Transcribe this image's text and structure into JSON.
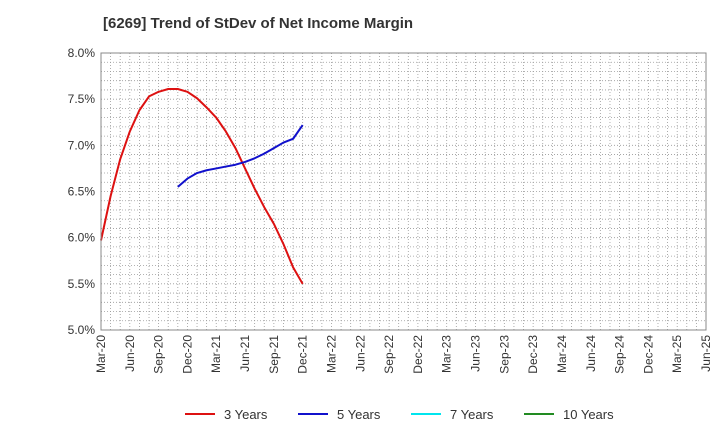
{
  "chart_data": {
    "type": "line",
    "title": "[6269]  Trend of StDev of Net Income Margin",
    "xlabel": "",
    "ylabel": "",
    "x_ticks": [
      "Mar-20",
      "Jun-20",
      "Sep-20",
      "Dec-20",
      "Mar-21",
      "Jun-21",
      "Sep-21",
      "Dec-21",
      "Mar-22",
      "Jun-22",
      "Sep-22",
      "Dec-22",
      "Mar-23",
      "Jun-23",
      "Sep-23",
      "Dec-23",
      "Mar-24",
      "Jun-24",
      "Sep-24",
      "Dec-24",
      "Mar-25",
      "Jun-25"
    ],
    "y_ticks": [
      "5.0%",
      "5.5%",
      "6.0%",
      "6.5%",
      "7.0%",
      "7.5%",
      "8.0%"
    ],
    "ylim": [
      5.0,
      8.0
    ],
    "y_unit": "%",
    "grid": true,
    "legend_position": "bottom",
    "series": [
      {
        "name": "3 Years",
        "color": "#dd1111",
        "points": [
          {
            "x": "Mar-20",
            "y": 5.97
          },
          {
            "x": "Apr-20",
            "y": 6.45
          },
          {
            "x": "May-20",
            "y": 6.85
          },
          {
            "x": "Jun-20",
            "y": 7.15
          },
          {
            "x": "Jul-20",
            "y": 7.38
          },
          {
            "x": "Aug-20",
            "y": 7.53
          },
          {
            "x": "Sep-20",
            "y": 7.58
          },
          {
            "x": "Oct-20",
            "y": 7.61
          },
          {
            "x": "Nov-20",
            "y": 7.61
          },
          {
            "x": "Dec-20",
            "y": 7.58
          },
          {
            "x": "Jan-21",
            "y": 7.51
          },
          {
            "x": "Feb-21",
            "y": 7.41
          },
          {
            "x": "Mar-21",
            "y": 7.3
          },
          {
            "x": "Apr-21",
            "y": 7.15
          },
          {
            "x": "May-21",
            "y": 6.97
          },
          {
            "x": "Jun-21",
            "y": 6.75
          },
          {
            "x": "Jul-21",
            "y": 6.53
          },
          {
            "x": "Aug-21",
            "y": 6.33
          },
          {
            "x": "Sep-21",
            "y": 6.15
          },
          {
            "x": "Oct-21",
            "y": 5.93
          },
          {
            "x": "Nov-21",
            "y": 5.68
          },
          {
            "x": "Dec-21",
            "y": 5.5
          }
        ]
      },
      {
        "name": "5 Years",
        "color": "#1111cc",
        "points": [
          {
            "x": "Nov-20",
            "y": 6.55
          },
          {
            "x": "Dec-20",
            "y": 6.64
          },
          {
            "x": "Jan-21",
            "y": 6.7
          },
          {
            "x": "Feb-21",
            "y": 6.73
          },
          {
            "x": "Mar-21",
            "y": 6.75
          },
          {
            "x": "Apr-21",
            "y": 6.77
          },
          {
            "x": "May-21",
            "y": 6.79
          },
          {
            "x": "Jun-21",
            "y": 6.82
          },
          {
            "x": "Jul-21",
            "y": 6.86
          },
          {
            "x": "Aug-21",
            "y": 6.91
          },
          {
            "x": "Sep-21",
            "y": 6.97
          },
          {
            "x": "Oct-21",
            "y": 7.03
          },
          {
            "x": "Nov-21",
            "y": 7.07
          },
          {
            "x": "Dec-21",
            "y": 7.22
          }
        ]
      },
      {
        "name": "7 Years",
        "color": "#00e5ee",
        "points": []
      },
      {
        "name": "10 Years",
        "color": "#228b22",
        "points": []
      }
    ]
  }
}
